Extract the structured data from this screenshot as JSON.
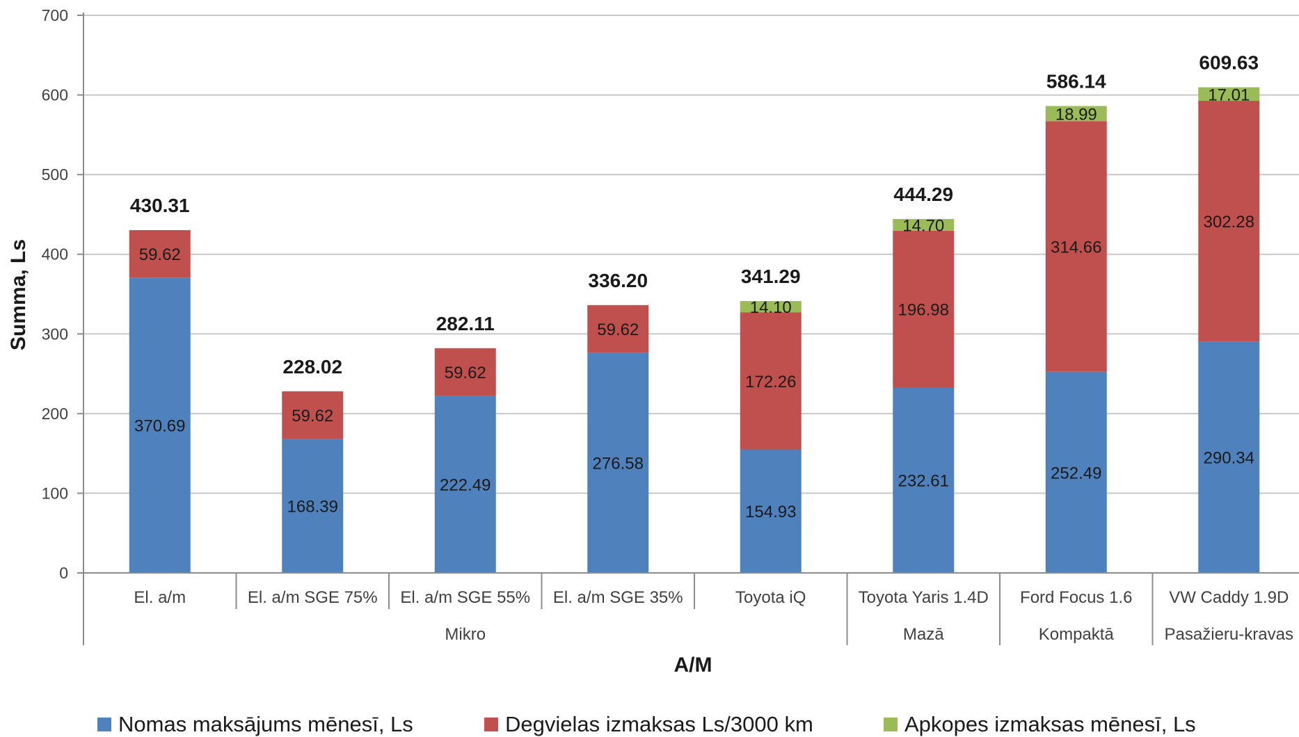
{
  "chart_data": {
    "type": "bar",
    "stacked": true,
    "title": "",
    "xlabel": "A/M",
    "ylabel": "Summa, Ls",
    "ylim": [
      0,
      700
    ],
    "yticks": [
      0,
      100,
      200,
      300,
      400,
      500,
      600,
      700
    ],
    "grid": true,
    "legend_position": "bottom",
    "categories": [
      "El. a/m",
      "El. a/m SGE 75%",
      "El. a/m SGE 55%",
      "El. a/m SGE 35%",
      "Toyota iQ",
      "Toyota Yaris 1.4D",
      "Ford Focus 1.6",
      "VW Caddy 1.9D"
    ],
    "groups": [
      {
        "label": "Mikro",
        "categories": [
          "El. a/m",
          "El. a/m SGE 75%",
          "El. a/m SGE 55%",
          "El. a/m SGE 35%",
          "Toyota iQ"
        ]
      },
      {
        "label": "Mazā",
        "categories": [
          "Toyota Yaris 1.4D"
        ]
      },
      {
        "label": "Kompaktā",
        "categories": [
          "Ford Focus 1.6"
        ]
      },
      {
        "label": "Pasažieru-kravas",
        "categories": [
          "VW Caddy 1.9D"
        ]
      }
    ],
    "series": [
      {
        "name": "Nomas maksājums mēnesī, Ls",
        "color": "#4f81bd",
        "values": [
          370.69,
          168.39,
          222.49,
          276.58,
          154.93,
          232.61,
          252.49,
          290.34
        ],
        "labels": [
          "370.69",
          "168.39",
          "222.49",
          "276.58",
          "154.93",
          "232.61",
          "252.49",
          "290.34"
        ]
      },
      {
        "name": "Degvielas izmaksas Ls/3000 km",
        "color": "#c0504d",
        "values": [
          59.62,
          59.62,
          59.62,
          59.62,
          172.26,
          196.98,
          314.66,
          302.28
        ],
        "labels": [
          "59.62",
          "59.62",
          "59.62",
          "59.62",
          "172.26",
          "196.98",
          "314.66",
          "302.28"
        ]
      },
      {
        "name": "Apkopes izmaksas mēnesī, Ls",
        "color": "#9bbb59",
        "values": [
          0,
          0,
          0,
          0,
          14.1,
          14.7,
          18.99,
          17.01
        ],
        "labels": [
          "",
          "",
          "",
          "",
          "14.10",
          "14.70",
          "18.99",
          "17.01"
        ]
      }
    ],
    "totals": [
      "430.31",
      "228.02",
      "282.11",
      "336.20",
      "341.29",
      "444.29",
      "586.14",
      "609.63"
    ]
  }
}
